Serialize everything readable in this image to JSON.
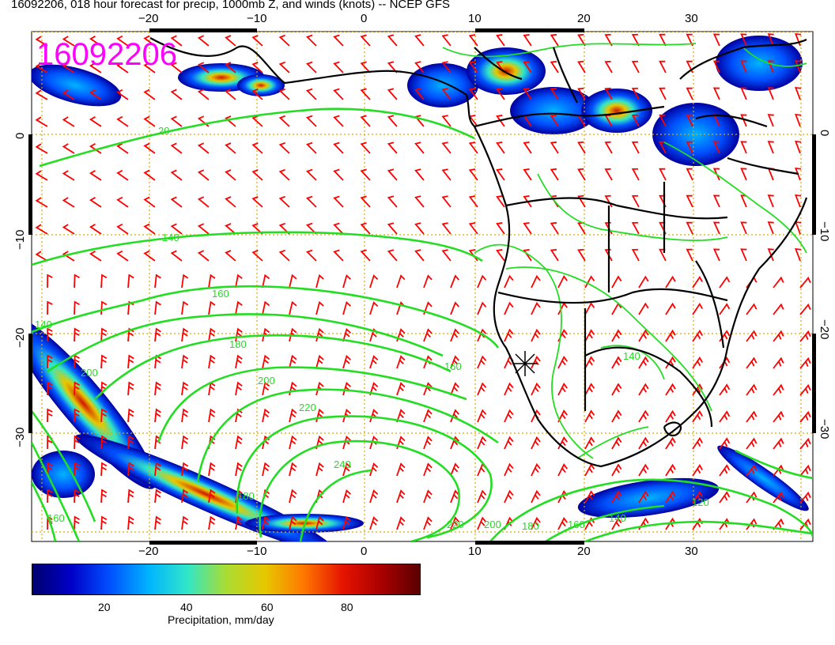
{
  "title": "16092206, 018 hour forecast for precip, 1000mb Z, and winds (knots) -- NCEP GFS",
  "stamp": "16092206",
  "lon_ticks_top": [
    "−20",
    "−10",
    "0",
    "10",
    "20",
    "30"
  ],
  "lon_ticks_bottom": [
    "−20",
    "−10",
    "0",
    "10",
    "20",
    "30"
  ],
  "lat_ticks_left": [
    "0",
    "−10",
    "−20",
    "−30"
  ],
  "lat_ticks_right": [
    "0",
    "−10",
    "−20",
    "−30"
  ],
  "contour_labels": [
    "20",
    "140",
    "160",
    "180",
    "200",
    "220",
    "240",
    "160",
    "180",
    "200",
    "220",
    "140",
    "140",
    "160",
    "180",
    "200",
    "160",
    "140",
    "120"
  ],
  "colorbar": {
    "title": "Precipitation, mm/day",
    "ticks": [
      "20",
      "40",
      "60",
      "80"
    ],
    "range": [
      0,
      100
    ],
    "colors": [
      "#00006e",
      "#0000c8",
      "#0050ff",
      "#00b4ff",
      "#30e6c8",
      "#aadc32",
      "#e6c800",
      "#ff7800",
      "#e61400",
      "#aa0000",
      "#5a0000"
    ]
  },
  "colors": {
    "contour": "#22dd22",
    "wind_barb": "#ff0000",
    "stamp": "#ff00ff",
    "grid": "#ddaa00",
    "coast": "#000000"
  }
}
